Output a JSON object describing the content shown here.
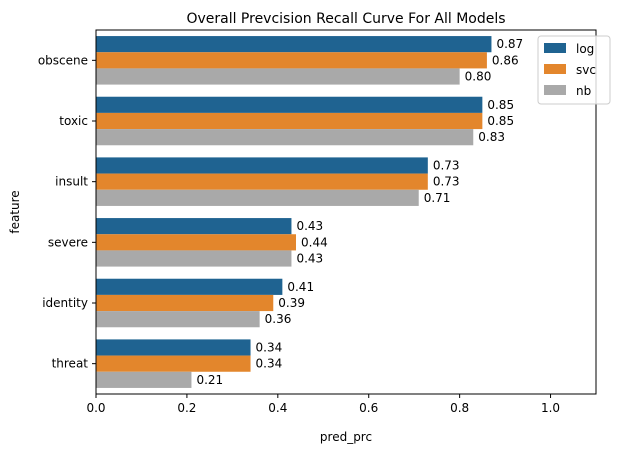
{
  "chart_data": {
    "type": "bar",
    "orientation": "horizontal",
    "title": "Overall Prevcision Recall Curve For All Models",
    "xlabel": "pred_prc",
    "ylabel": "feature",
    "xlim": [
      0,
      1.1
    ],
    "xticks": [
      "0.0",
      "0.2",
      "0.4",
      "0.6",
      "0.8",
      "1.0"
    ],
    "grid": false,
    "legend_position": "top-right",
    "categories": [
      "obscene",
      "toxic",
      "insult",
      "severe",
      "identity",
      "threat"
    ],
    "series": [
      {
        "name": "log",
        "color": "#1f6391",
        "values": [
          0.87,
          0.85,
          0.73,
          0.43,
          0.41,
          0.34
        ],
        "labels": [
          "0.87",
          "0.85",
          "0.73",
          "0.43",
          "0.41",
          "0.34"
        ]
      },
      {
        "name": "svc",
        "color": "#e3862c",
        "values": [
          0.86,
          0.85,
          0.73,
          0.44,
          0.39,
          0.34
        ],
        "labels": [
          "0.86",
          "0.85",
          "0.73",
          "0.44",
          "0.39",
          "0.34"
        ]
      },
      {
        "name": "nb",
        "color": "#a9a9a9",
        "values": [
          0.8,
          0.83,
          0.71,
          0.43,
          0.36,
          0.21
        ],
        "labels": [
          "0.80",
          "0.83",
          "0.71",
          "0.43",
          "0.36",
          "0.21"
        ]
      }
    ]
  }
}
